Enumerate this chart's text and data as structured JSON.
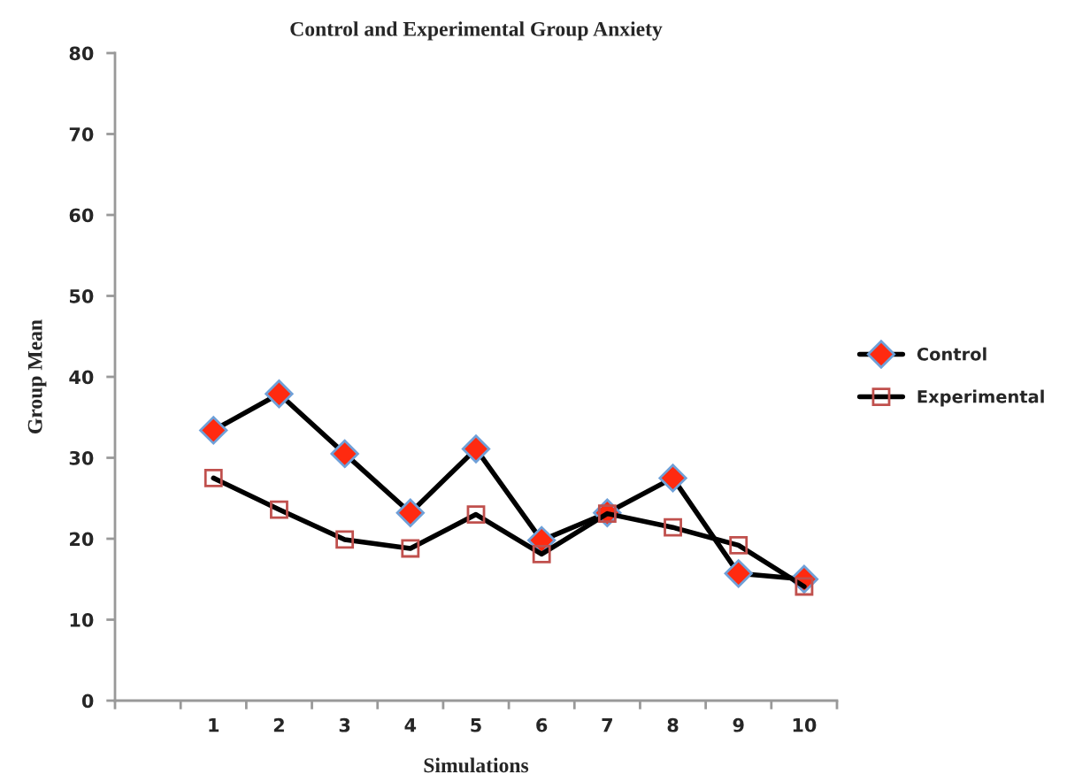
{
  "chart_data": {
    "type": "line",
    "title": "Control and Experimental Group Anxiety",
    "xlabel": "Simulations",
    "ylabel": "Group Mean",
    "categories": [
      null,
      "1",
      "2",
      "3",
      "4",
      "5",
      "6",
      "7",
      "8",
      "9",
      "10"
    ],
    "series": [
      {
        "name": "Control",
        "color": "#ff2a10",
        "marker": "diamond",
        "values": [
          null,
          33.4,
          37.9,
          30.5,
          23.2,
          31.1,
          19.8,
          23.2,
          27.5,
          15.7,
          15.0
        ]
      },
      {
        "name": "Experimental",
        "color": "#c0504d",
        "marker": "square",
        "values": [
          null,
          27.5,
          23.6,
          19.9,
          18.8,
          23.0,
          18.1,
          23.1,
          21.4,
          19.2,
          14.1
        ]
      }
    ],
    "ylim": [
      0,
      80
    ],
    "yticks": [
      0,
      10,
      20,
      30,
      40,
      50,
      60,
      70,
      80
    ],
    "grid": false,
    "legend": "right",
    "line_style": "solid"
  }
}
